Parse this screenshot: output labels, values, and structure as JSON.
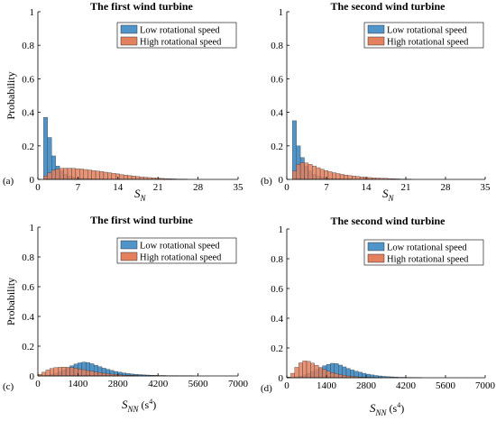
{
  "colors": {
    "low": "#4f95c9",
    "high": "#e3805d",
    "axis": "#000000"
  },
  "legend": {
    "low": "Low rotational speed",
    "high": "High rotational speed"
  },
  "chart_data": [
    {
      "type": "bar",
      "panel_label": "(a)",
      "title": "The first wind turbine",
      "xlabel_main": "S",
      "xlabel_sub": "N",
      "xlabel_unit": "",
      "xlabel_sup": "",
      "ylabel": "Probability",
      "xlim": [
        0,
        35
      ],
      "ylim": [
        0,
        1
      ],
      "xticks": [
        0,
        7,
        14,
        21,
        28,
        35
      ],
      "yticks": [
        0,
        0.2,
        0.4,
        0.6,
        0.8,
        1
      ],
      "ytick_labels": [
        "0",
        "0.2",
        "0.4",
        "0.6",
        "0.8",
        "1"
      ],
      "legend_position": "top-right",
      "grid": false,
      "bin_width": 0.7,
      "x_start": 1.0,
      "series": [
        {
          "name": "Low rotational speed",
          "values": [
            0.37,
            0.25,
            0.14,
            0.08,
            0.05,
            0.03,
            0.02,
            0.015,
            0.01,
            0.008,
            0.006,
            0.004,
            0.003,
            0.002,
            0.002,
            0.001
          ]
        },
        {
          "name": "High rotational speed",
          "values": [
            0.02,
            0.04,
            0.055,
            0.062,
            0.066,
            0.067,
            0.067,
            0.066,
            0.064,
            0.062,
            0.059,
            0.056,
            0.053,
            0.05,
            0.047,
            0.043,
            0.04,
            0.036,
            0.033,
            0.029,
            0.026,
            0.023,
            0.02,
            0.017,
            0.015,
            0.013,
            0.011,
            0.009,
            0.008,
            0.006,
            0.005,
            0.004,
            0.003,
            0.002,
            0.002,
            0.001
          ]
        }
      ]
    },
    {
      "type": "bar",
      "panel_label": "(b)",
      "title": "The second wind turbine",
      "xlabel_main": "S",
      "xlabel_sub": "N",
      "xlabel_unit": "",
      "xlabel_sup": "",
      "ylabel": "",
      "xlim": [
        0,
        35
      ],
      "ylim": [
        0,
        1
      ],
      "xticks": [
        0,
        7,
        14,
        21,
        28,
        35
      ],
      "yticks": [
        0,
        0.2,
        0.4,
        0.6,
        0.8,
        1
      ],
      "ytick_labels": [
        "0",
        "0.2",
        "0.4",
        "0.6",
        "0.8",
        "1"
      ],
      "legend_position": "top-right",
      "grid": false,
      "bin_width": 0.7,
      "x_start": 1.0,
      "series": [
        {
          "name": "Low rotational speed",
          "values": [
            0.35,
            0.2,
            0.13,
            0.08,
            0.05,
            0.03,
            0.02,
            0.014,
            0.01,
            0.007,
            0.005,
            0.004,
            0.003,
            0.002,
            0.001
          ]
        },
        {
          "name": "High rotational speed",
          "values": [
            0.05,
            0.09,
            0.1,
            0.098,
            0.09,
            0.08,
            0.07,
            0.061,
            0.053,
            0.046,
            0.04,
            0.035,
            0.03,
            0.026,
            0.023,
            0.02,
            0.017,
            0.015,
            0.013,
            0.011,
            0.009,
            0.008,
            0.007,
            0.006,
            0.005,
            0.004,
            0.003,
            0.002,
            0.002,
            0.001
          ]
        }
      ]
    },
    {
      "type": "bar",
      "panel_label": "(c)",
      "title": "The first wind turbine",
      "xlabel_main": "S",
      "xlabel_sub": "NN",
      "xlabel_unit": " (s",
      "xlabel_sup": "4",
      "ylabel": "Probability",
      "xlim": [
        0,
        7000
      ],
      "ylim": [
        0,
        1
      ],
      "xticks": [
        0,
        1400,
        2800,
        4200,
        5600,
        7000
      ],
      "yticks": [
        0,
        0.2,
        0.4,
        0.6,
        0.8,
        1
      ],
      "ytick_labels": [
        "0",
        "0.2",
        "0.4",
        "0.6",
        "0.8",
        "1"
      ],
      "legend_position": "top-right",
      "grid": false,
      "bin_width": 140,
      "x_start": 0,
      "series": [
        {
          "name": "Low rotational speed",
          "values": [
            0.0,
            0.002,
            0.005,
            0.01,
            0.018,
            0.028,
            0.04,
            0.055,
            0.068,
            0.08,
            0.088,
            0.093,
            0.09,
            0.082,
            0.072,
            0.062,
            0.052,
            0.044,
            0.037,
            0.03,
            0.025,
            0.02,
            0.016,
            0.013,
            0.011,
            0.009,
            0.007,
            0.006,
            0.005,
            0.004,
            0.003,
            0.003,
            0.002,
            0.002,
            0.002,
            0.001,
            0.001,
            0.001,
            0.001
          ]
        },
        {
          "name": "High rotational speed",
          "values": [
            0.01,
            0.025,
            0.04,
            0.05,
            0.056,
            0.058,
            0.059,
            0.058,
            0.056,
            0.052,
            0.047,
            0.042,
            0.036,
            0.031,
            0.026,
            0.022,
            0.018,
            0.015,
            0.012,
            0.01,
            0.008,
            0.006,
            0.005,
            0.004,
            0.003,
            0.002,
            0.002,
            0.001,
            0.001
          ]
        }
      ]
    },
    {
      "type": "bar",
      "panel_label": "(d)",
      "title": "The second wind turbine",
      "xlabel_main": "S",
      "xlabel_sub": "NN",
      "xlabel_unit": " (s",
      "xlabel_sup": "4",
      "ylabel": "",
      "xlim": [
        0,
        7000
      ],
      "ylim": [
        0,
        1
      ],
      "xticks": [
        0,
        1400,
        2800,
        4200,
        5600,
        7000
      ],
      "yticks": [
        0,
        0.2,
        0.4,
        0.6,
        0.8,
        1
      ],
      "ytick_labels": [
        "0",
        "0.2",
        "0.4",
        "0.6",
        "0.8",
        "1"
      ],
      "legend_position": "top-right",
      "grid": false,
      "bin_width": 140,
      "x_start": 0,
      "series": [
        {
          "name": "Low rotational speed",
          "values": [
            0.0,
            0.002,
            0.006,
            0.012,
            0.02,
            0.03,
            0.042,
            0.055,
            0.068,
            0.08,
            0.09,
            0.097,
            0.095,
            0.085,
            0.073,
            0.062,
            0.052,
            0.044,
            0.037,
            0.03,
            0.024,
            0.019,
            0.015,
            0.012,
            0.009,
            0.007,
            0.006,
            0.004,
            0.003,
            0.003,
            0.002,
            0.002,
            0.001,
            0.001
          ]
        },
        {
          "name": "High rotational speed",
          "values": [
            0.005,
            0.03,
            0.07,
            0.1,
            0.113,
            0.11,
            0.098,
            0.083,
            0.068,
            0.055,
            0.044,
            0.034,
            0.027,
            0.021,
            0.016,
            0.012,
            0.009,
            0.007,
            0.005,
            0.004,
            0.003,
            0.002,
            0.001,
            0.001
          ]
        }
      ]
    }
  ]
}
